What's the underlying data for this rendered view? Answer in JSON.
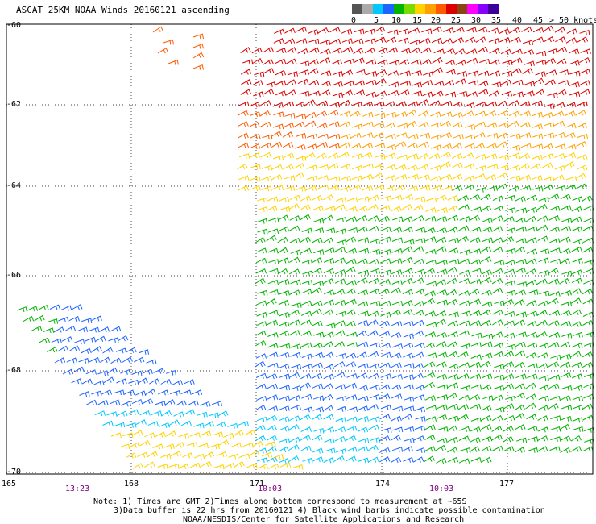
{
  "title": "ASCAT 25KM NOAA Winds 20160121 ascending",
  "legend": {
    "colors": [
      "#555555",
      "#aaaaaa",
      "#00c8ff",
      "#1e64ff",
      "#00b400",
      "#78dc00",
      "#ffd200",
      "#ffa000",
      "#ff5a00",
      "#dc0000",
      "#8b4513",
      "#ff00ff",
      "#8a00ff",
      "#3c009b"
    ],
    "labels": [
      "0",
      "5",
      "10",
      "15",
      "20",
      "25",
      "30",
      "35",
      "40",
      "45",
      "> 50 knots"
    ]
  },
  "axes": {
    "lat_labels": [
      "-60",
      "-62",
      "-64",
      "-66",
      "-68",
      "-70"
    ],
    "lon_labels": [
      "165",
      "168",
      "171",
      "174",
      "177"
    ]
  },
  "time_labels": [
    "13:23",
    "10:03",
    "10:03"
  ],
  "notes": [
    "Note: 1) Times are GMT 2)Times along bottom correspond to measurement at ~65S",
    "3)Data buffer is 22 hrs from 20160121 4) Black wind barbs indicate possible contamination",
    "NOAA/NESDIS/Center for Satellite Applications and Research"
  ],
  "swaths": [
    {
      "description": "eastern swath",
      "lat_range": [
        -70,
        -60
      ],
      "lon_range": [
        171,
        180
      ]
    },
    {
      "description": "western swath",
      "lat_range": [
        -70,
        -67
      ],
      "lon_range": [
        165,
        172
      ]
    }
  ]
}
